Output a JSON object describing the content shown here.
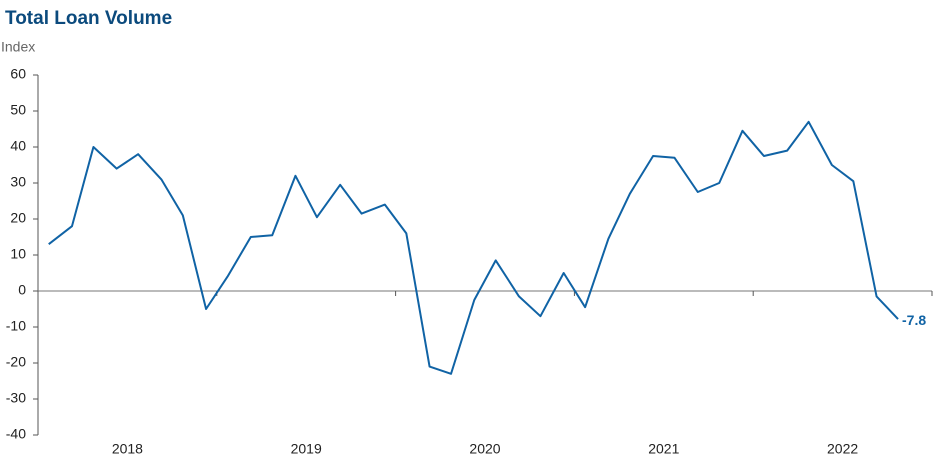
{
  "chart_data": {
    "type": "line",
    "title": "Total Loan Volume",
    "y_label": "Index",
    "x": [
      2018.06,
      2018.19,
      2018.31,
      2018.44,
      2018.56,
      2018.69,
      2018.81,
      2018.94,
      2019.06,
      2019.19,
      2019.31,
      2019.44,
      2019.56,
      2019.69,
      2019.81,
      2019.94,
      2020.06,
      2020.19,
      2020.31,
      2020.44,
      2020.56,
      2020.69,
      2020.81,
      2020.94,
      2021.06,
      2021.19,
      2021.31,
      2021.44,
      2021.56,
      2021.69,
      2021.81,
      2021.94,
      2022.06,
      2022.19,
      2022.31,
      2022.44,
      2022.56,
      2022.69,
      2022.81
    ],
    "series": [
      {
        "name": "Total Loan Volume",
        "color": "#1063a5",
        "values": [
          13,
          18,
          40,
          34,
          38,
          31,
          21,
          -5,
          4,
          15,
          15.5,
          32,
          20.5,
          29.5,
          21.5,
          24,
          16,
          -21,
          -23,
          -2.5,
          8.5,
          -1.5,
          -7,
          5,
          -4.5,
          14.5,
          27,
          37.5,
          37,
          27.5,
          30,
          44.5,
          37.5,
          39,
          47,
          35,
          30.5,
          -1.5,
          -7.8
        ]
      }
    ],
    "xlim": [
      2018,
      2023
    ],
    "xticks": [
      2018,
      2019,
      2020,
      2021,
      2022,
      2023
    ],
    "xtick_labels": [
      {
        "value": 2018.5,
        "label": "2018"
      },
      {
        "value": 2019.5,
        "label": "2019"
      },
      {
        "value": 2020.5,
        "label": "2020"
      },
      {
        "value": 2021.5,
        "label": "2021"
      },
      {
        "value": 2022.5,
        "label": "2022"
      }
    ],
    "ylim": [
      -40,
      60
    ],
    "yticks": [
      -40,
      -30,
      -20,
      -10,
      0,
      10,
      20,
      30,
      40,
      50,
      60
    ]
  }
}
